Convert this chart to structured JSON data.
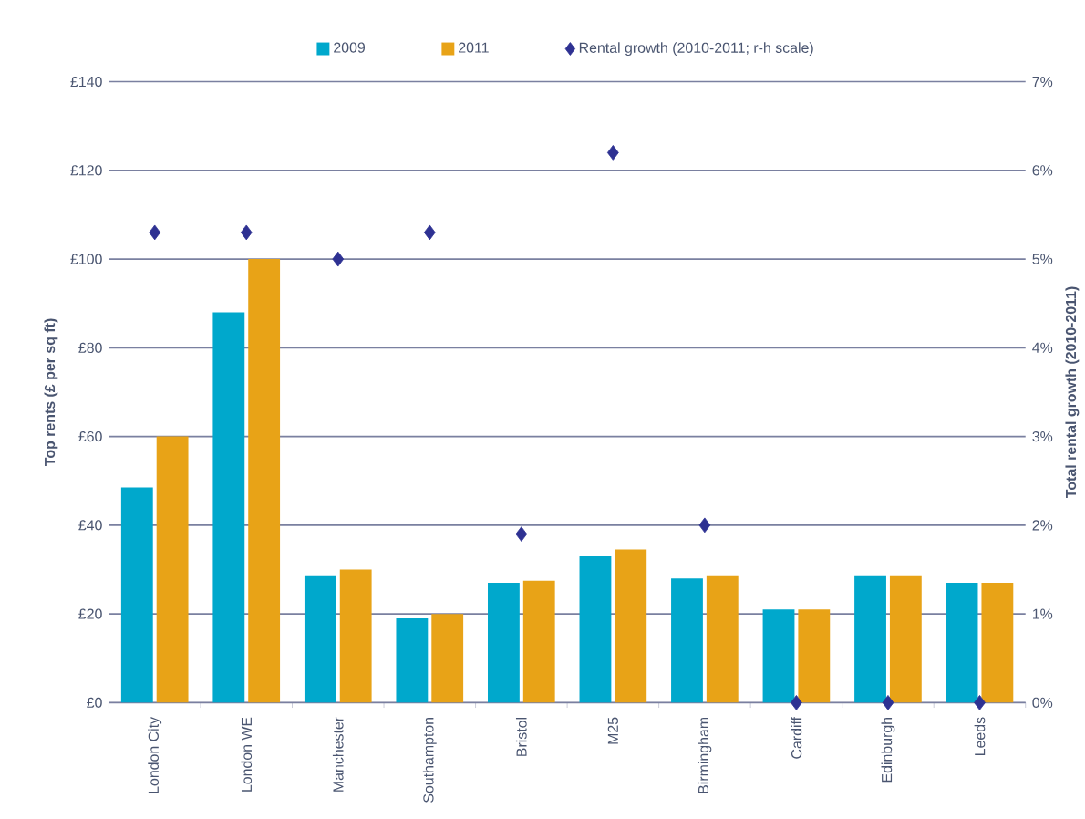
{
  "chart_data": {
    "type": "bar",
    "ylabel": "Top rents (£ per sq ft)",
    "y2label": "Total rental growth (2010-2011)",
    "categories": [
      "London City",
      "London WE",
      "Manchester",
      "Southampton",
      "Bristol",
      "M25",
      "Birmingham",
      "Cardiff",
      "Edinburgh",
      "Leeds"
    ],
    "series": [
      {
        "name": "2009",
        "color": "#00a8cc",
        "values": [
          48.5,
          88,
          28.5,
          19,
          27,
          33,
          28,
          21,
          28.5,
          27
        ]
      },
      {
        "name": "2011",
        "color": "#e8a317",
        "values": [
          60,
          100,
          30,
          20,
          27.5,
          34.5,
          28.5,
          21,
          28.5,
          27
        ]
      },
      {
        "name": "Rental growth (2010-2011; r-h scale)",
        "type": "scatter",
        "axis": "y2",
        "color": "#2e3192",
        "marker": "diamond",
        "values": [
          5.3,
          5.3,
          5.0,
          5.3,
          1.9,
          6.2,
          2.0,
          0,
          0,
          0
        ]
      }
    ],
    "ylim": [
      0,
      140
    ],
    "yticks": [
      {
        "value": 0,
        "label": "£0"
      },
      {
        "value": 20,
        "label": "£20"
      },
      {
        "value": 40,
        "label": "£40"
      },
      {
        "value": 60,
        "label": "£60"
      },
      {
        "value": 80,
        "label": "£80"
      },
      {
        "value": 100,
        "label": "£100"
      },
      {
        "value": 120,
        "label": "£120"
      },
      {
        "value": 140,
        "label": "£140"
      }
    ],
    "y2lim": [
      0,
      7
    ],
    "y2ticks": [
      {
        "value": 0,
        "label": "0%"
      },
      {
        "value": 1,
        "label": "1%"
      },
      {
        "value": 2,
        "label": "2%"
      },
      {
        "value": 3,
        "label": "3%"
      },
      {
        "value": 4,
        "label": "4%"
      },
      {
        "value": 5,
        "label": "5%"
      },
      {
        "value": 6,
        "label": "6%"
      },
      {
        "value": 7,
        "label": "7%"
      }
    ],
    "grid": "y",
    "legend": "top"
  }
}
